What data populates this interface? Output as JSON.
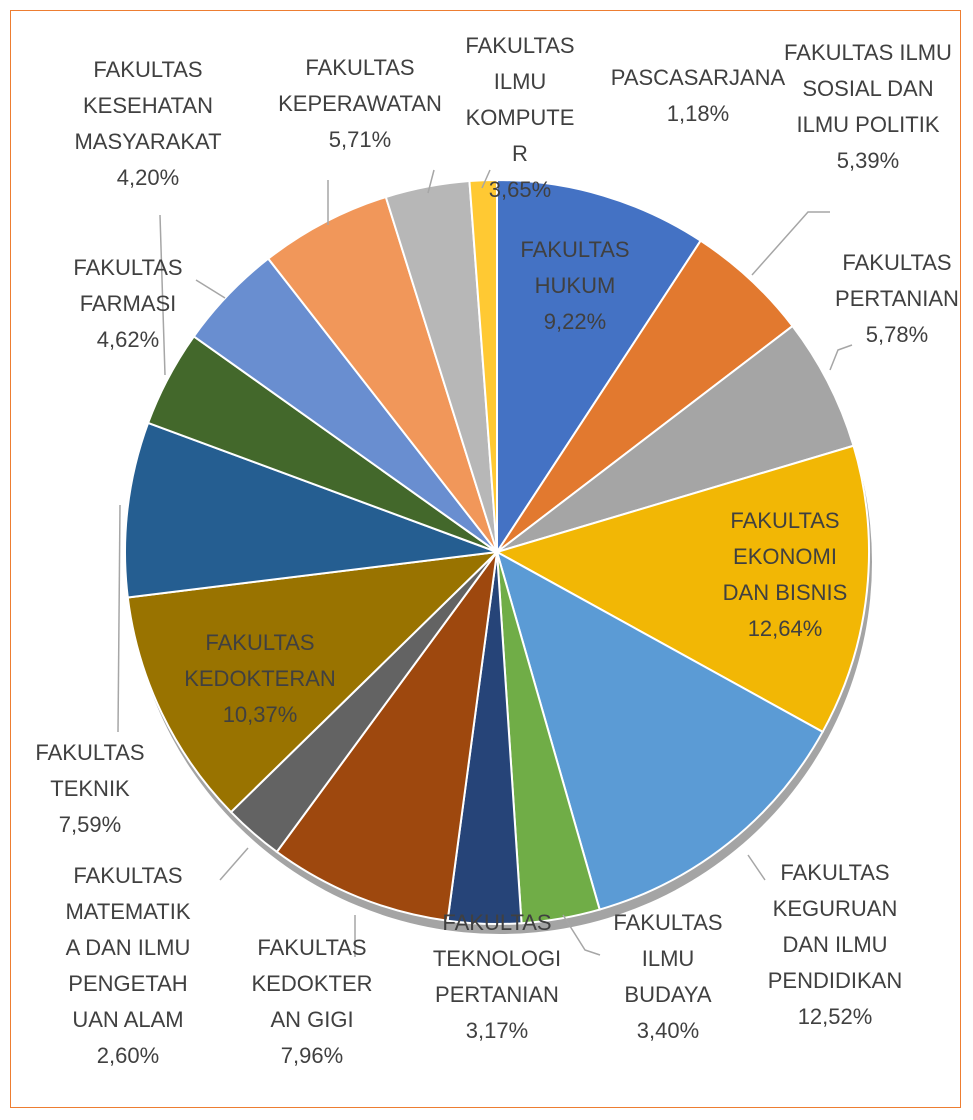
{
  "chart_data": {
    "type": "pie",
    "categories": [
      "FAKULTAS HUKUM",
      "FAKULTAS ILMU SOSIAL DAN ILMU POLITIK",
      "FAKULTAS PERTANIAN",
      "FAKULTAS EKONOMI DAN BISNIS",
      "FAKULTAS KEGURUAN DAN ILMU PENDIDIKAN",
      "FAKULTAS ILMU BUDAYA",
      "FAKULTAS TEKNOLOGI PERTANIAN",
      "FAKULTAS KEDOKTERAN GIGI",
      "FAKULTAS MATEMATIKA DAN ILMU PENGETAHUAN ALAM",
      "FAKULTAS KEDOKTERAN",
      "FAKULTAS TEKNIK",
      "FAKULTAS KESEHATAN MASYARAKAT",
      "FAKULTAS FARMASI",
      "FAKULTAS KEPERAWATAN",
      "FAKULTAS ILMU KOMPUTER",
      "PASCASARJANA"
    ],
    "values": [
      9.22,
      5.39,
      5.78,
      12.64,
      12.52,
      3.4,
      3.17,
      7.96,
      2.6,
      10.37,
      7.59,
      4.2,
      4.62,
      5.71,
      3.65,
      1.18
    ],
    "value_labels": [
      "9,22%",
      "5,39%",
      "5,78%",
      "12,64%",
      "12,52%",
      "3,40%",
      "3,17%",
      "7,96%",
      "2,60%",
      "10,37%",
      "7,59%",
      "4,20%",
      "4,62%",
      "5,71%",
      "3,65%",
      "1,18%"
    ],
    "colors": [
      "#4472c4",
      "#e2792f",
      "#a5a5a5",
      "#f2b705",
      "#5b9bd5",
      "#70ad47",
      "#264478",
      "#9e480e",
      "#636363",
      "#997300",
      "#255e91",
      "#43682b",
      "#698ed0",
      "#f1975a",
      "#b7b7b7",
      "#ffc933"
    ]
  }
}
